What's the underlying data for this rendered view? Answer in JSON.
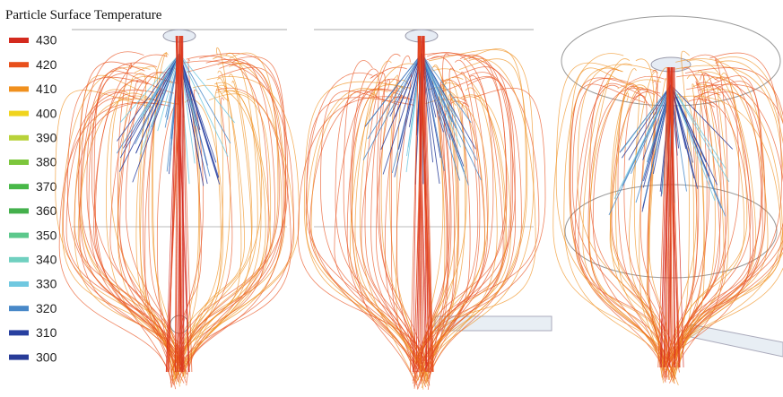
{
  "legend": {
    "title": "Particle Surface Temperature",
    "items": [
      {
        "value": 430,
        "color": "#d42a1e"
      },
      {
        "value": 420,
        "color": "#e8501c"
      },
      {
        "value": 410,
        "color": "#f0901e"
      },
      {
        "value": 400,
        "color": "#f0d41e"
      },
      {
        "value": 390,
        "color": "#b8d23a"
      },
      {
        "value": 380,
        "color": "#7cc63c"
      },
      {
        "value": 370,
        "color": "#48b848"
      },
      {
        "value": 360,
        "color": "#44b04c"
      },
      {
        "value": 350,
        "color": "#5cc88c"
      },
      {
        "value": 340,
        "color": "#70d0c0"
      },
      {
        "value": 330,
        "color": "#70c8e0"
      },
      {
        "value": 320,
        "color": "#4888c8"
      },
      {
        "value": 310,
        "color": "#2840a0"
      },
      {
        "value": 300,
        "color": "#283c98"
      }
    ]
  }
}
